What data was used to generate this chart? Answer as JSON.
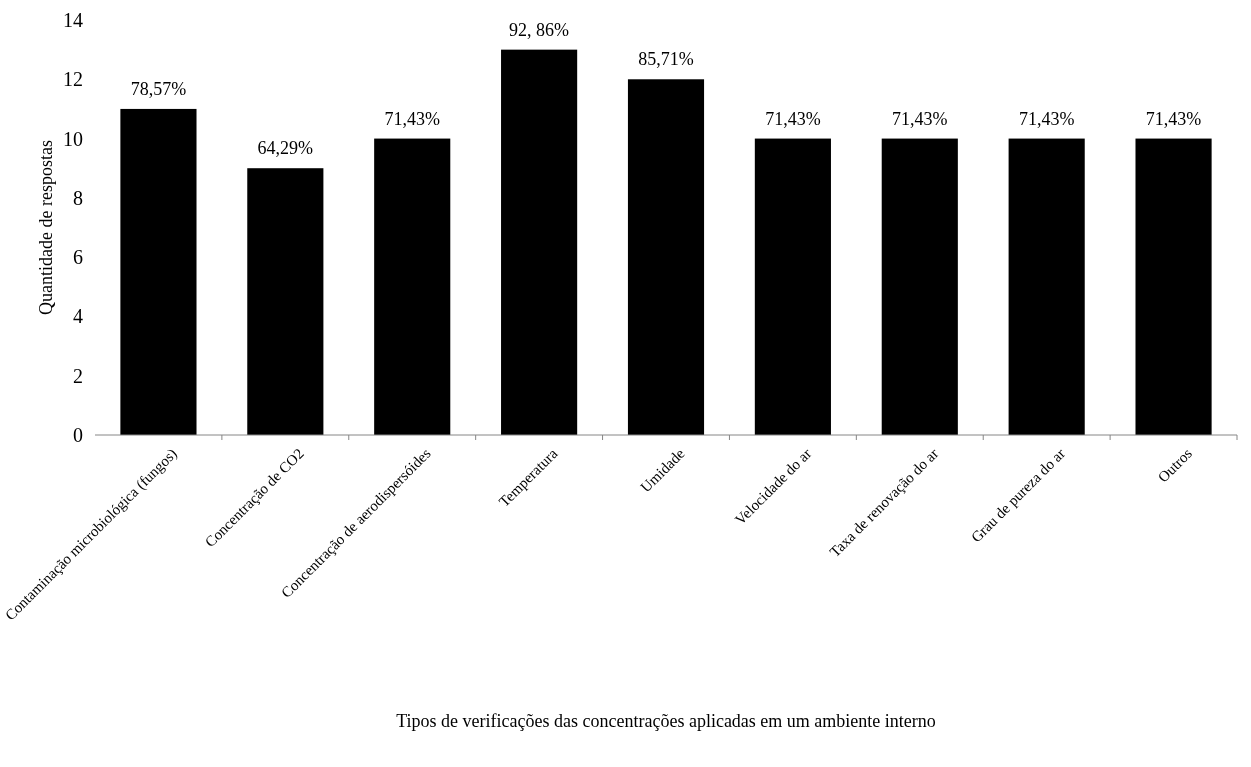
{
  "chart_data": {
    "type": "bar",
    "xlabel": "Tipos de verificações das concentrações aplicadas em um ambiente interno",
    "ylabel": "Quantidade de respostas",
    "categories": [
      "Contaminação microbiológica (fungos)",
      "Concentração de CO2",
      "Concentração de aerodispersóides",
      "Temperatura",
      "Umidade",
      "Velocidade do ar",
      "Taxa de renovação do ar",
      "Grau de pureza do ar",
      "Outros"
    ],
    "values": [
      11,
      9,
      10,
      13,
      12,
      10,
      10,
      10,
      10
    ],
    "annotations": [
      {
        "text": "78,57%",
        "x": "Contaminação microbiológica (fungos)",
        "y": 11
      },
      {
        "text": "64,29%",
        "x": "Concentração de CO2",
        "y": 9
      },
      {
        "text": "71,43%",
        "x": "Concentração de aerodispersóides",
        "y": 10
      },
      {
        "text": "92, 86%",
        "x": "Temperatura",
        "y": 13
      },
      {
        "text": "85,71%",
        "x": "Umidade",
        "y": 12
      },
      {
        "text": "71,43%",
        "x": "Velocidade do ar",
        "y": 10
      },
      {
        "text": "71,43%",
        "x": "Taxa de renovação do ar",
        "y": 10
      },
      {
        "text": "71,43%",
        "x": "Grau de pureza do ar",
        "y": 10
      },
      {
        "text": "71,43%",
        "x": "Outros",
        "y": 10
      }
    ],
    "color": "#000000",
    "ylim": [
      0,
      14
    ],
    "yticks": [
      0,
      2,
      4,
      6,
      8,
      10,
      12,
      14
    ],
    "grid": false
  }
}
